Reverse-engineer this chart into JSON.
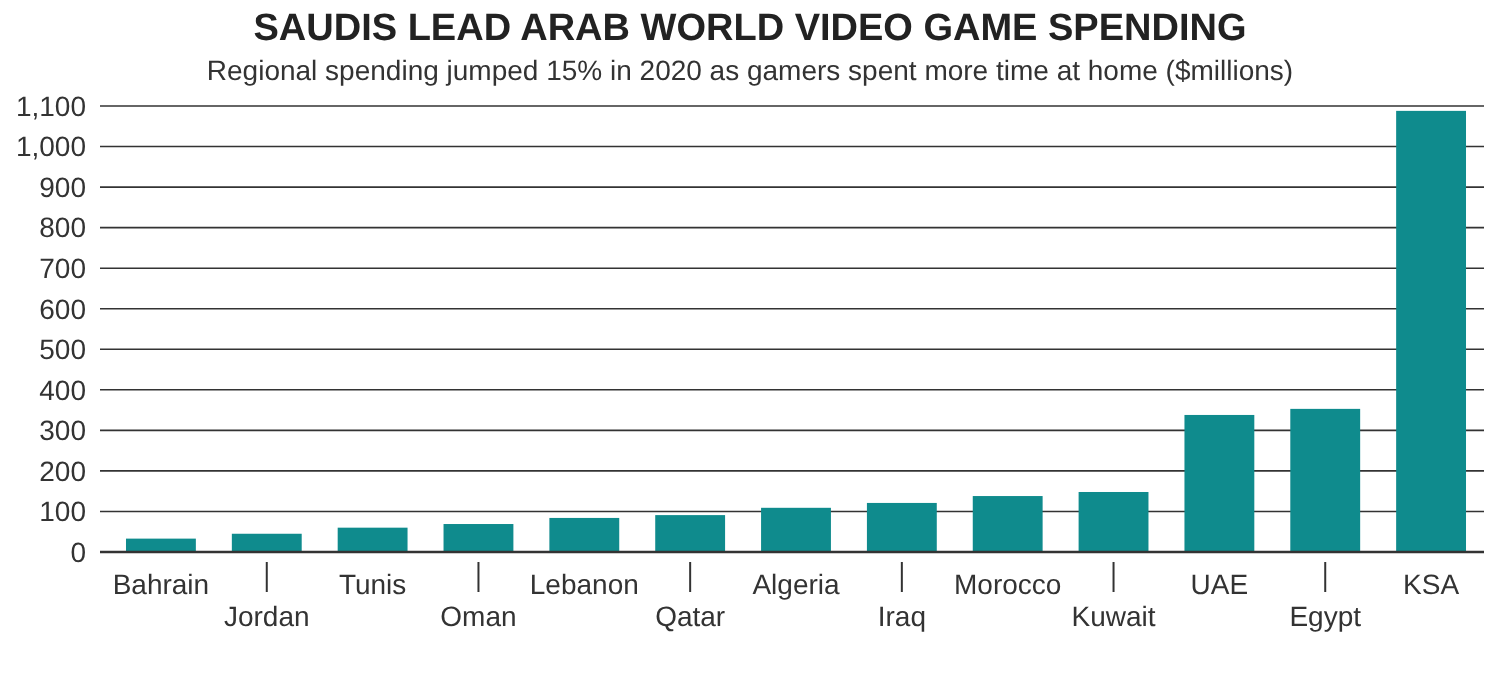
{
  "chart_data": {
    "type": "bar",
    "title": "SAUDIS LEAD ARAB WORLD VIDEO GAME SPENDING",
    "subtitle": "Regional spending jumped 15% in 2020 as gamers spent more time at home ($millions)",
    "categories": [
      "Bahrain",
      "Jordan",
      "Tunis",
      "Oman",
      "Lebanon",
      "Qatar",
      "Algeria",
      "Iraq",
      "Morocco",
      "Kuwait",
      "UAE",
      "Egypt",
      "KSA"
    ],
    "values": [
      33,
      45,
      60,
      69,
      84,
      91,
      109,
      121,
      138,
      148,
      338,
      353,
      1088
    ],
    "color": "#0f8b8d",
    "ylim": [
      0,
      1100
    ],
    "yticks": [
      0,
      100,
      200,
      300,
      400,
      500,
      600,
      700,
      800,
      900,
      {
        "value": 1000,
        "label": "1,000"
      },
      {
        "value": 1100,
        "label": "1,100"
      }
    ],
    "grid": "y"
  }
}
